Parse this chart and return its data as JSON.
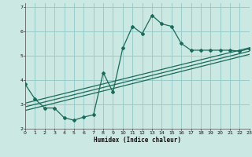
{
  "xlabel": "Humidex (Indice chaleur)",
  "bg_color": "#cbe8e3",
  "grid_color": "#99cccc",
  "line_color": "#1a6b5a",
  "x_min": 0,
  "x_max": 23,
  "y_min": 2,
  "y_max": 7,
  "curve_x": [
    0,
    1,
    2,
    3,
    4,
    5,
    6,
    7,
    8,
    9,
    10,
    11,
    12,
    13,
    14,
    15,
    16,
    17,
    18,
    19,
    20,
    21,
    22,
    23
  ],
  "curve_y": [
    3.82,
    3.22,
    2.85,
    2.85,
    2.45,
    2.35,
    2.48,
    2.57,
    4.3,
    3.5,
    5.3,
    6.2,
    5.9,
    6.65,
    6.3,
    6.2,
    5.5,
    5.22,
    5.22,
    5.22,
    5.22,
    5.22,
    5.18,
    5.28
  ],
  "line1_x": [
    0,
    23
  ],
  "line1_y": [
    3.05,
    5.32
  ],
  "line2_x": [
    0,
    23
  ],
  "line2_y": [
    2.9,
    5.18
  ],
  "line3_x": [
    0,
    23
  ],
  "line3_y": [
    2.75,
    5.05
  ]
}
